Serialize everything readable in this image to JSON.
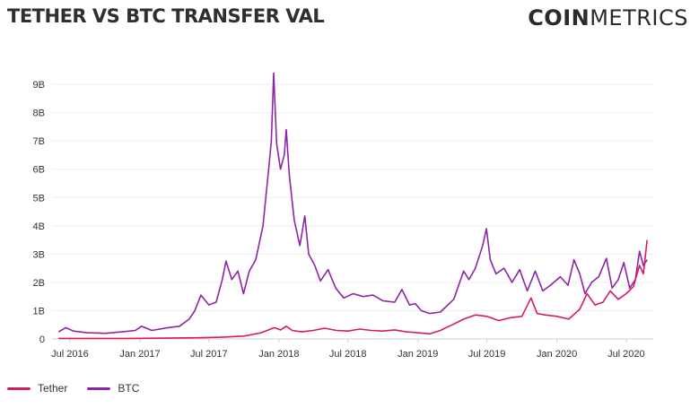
{
  "header": {
    "title": "TETHER VS BTC TRANSFER VAL",
    "brand_bold": "COIN",
    "brand_light": "METRICS"
  },
  "colors": {
    "tether": "#d81b60",
    "btc": "#8e24aa",
    "grid": "#eeeeee",
    "axis": "#cfcfcf",
    "text": "#333333"
  },
  "chart_data": {
    "type": "line",
    "title": "TETHER VS BTC TRANSFER VAL",
    "xlabel": "",
    "ylabel": "",
    "y_ticks": [
      "0",
      "1B",
      "2B",
      "3B",
      "4B",
      "5B",
      "6B",
      "7B",
      "8B",
      "9B"
    ],
    "ylim": [
      0,
      9.7
    ],
    "x_ticks": [
      "Jul 2016",
      "Jan 2017",
      "Jul 2017",
      "Jan 2018",
      "Jul 2018",
      "Jan 2019",
      "Jul 2019",
      "Jan 2020",
      "Jul 2020"
    ],
    "grid": "horizontal",
    "legend": "bottom-left",
    "units": "billions USD",
    "series": [
      {
        "name": "Tether",
        "points": [
          [
            "2016-06-01",
            0.02
          ],
          [
            "2016-09-01",
            0.02
          ],
          [
            "2016-12-01",
            0.02
          ],
          [
            "2017-03-01",
            0.03
          ],
          [
            "2017-06-01",
            0.04
          ],
          [
            "2017-08-01",
            0.06
          ],
          [
            "2017-10-01",
            0.1
          ],
          [
            "2017-11-15",
            0.22
          ],
          [
            "2017-12-20",
            0.4
          ],
          [
            "2018-01-05",
            0.32
          ],
          [
            "2018-01-20",
            0.45
          ],
          [
            "2018-02-05",
            0.3
          ],
          [
            "2018-03-01",
            0.25
          ],
          [
            "2018-04-01",
            0.3
          ],
          [
            "2018-05-01",
            0.38
          ],
          [
            "2018-06-01",
            0.3
          ],
          [
            "2018-07-01",
            0.28
          ],
          [
            "2018-08-01",
            0.35
          ],
          [
            "2018-09-01",
            0.3
          ],
          [
            "2018-10-01",
            0.28
          ],
          [
            "2018-11-01",
            0.32
          ],
          [
            "2018-12-01",
            0.25
          ],
          [
            "2019-01-01",
            0.22
          ],
          [
            "2019-02-01",
            0.18
          ],
          [
            "2019-03-01",
            0.3
          ],
          [
            "2019-04-01",
            0.5
          ],
          [
            "2019-05-01",
            0.7
          ],
          [
            "2019-06-01",
            0.85
          ],
          [
            "2019-07-01",
            0.8
          ],
          [
            "2019-08-01",
            0.65
          ],
          [
            "2019-09-01",
            0.75
          ],
          [
            "2019-10-01",
            0.8
          ],
          [
            "2019-10-25",
            1.45
          ],
          [
            "2019-11-10",
            0.9
          ],
          [
            "2019-12-01",
            0.85
          ],
          [
            "2020-01-01",
            0.8
          ],
          [
            "2020-02-01",
            0.7
          ],
          [
            "2020-03-01",
            1.05
          ],
          [
            "2020-03-20",
            1.6
          ],
          [
            "2020-04-10",
            1.2
          ],
          [
            "2020-05-01",
            1.3
          ],
          [
            "2020-05-20",
            1.7
          ],
          [
            "2020-06-10",
            1.4
          ],
          [
            "2020-07-01",
            1.6
          ],
          [
            "2020-07-20",
            1.85
          ],
          [
            "2020-08-05",
            2.6
          ],
          [
            "2020-08-15",
            2.3
          ],
          [
            "2020-08-25",
            3.5
          ]
        ]
      },
      {
        "name": "BTC",
        "points": [
          [
            "2016-06-01",
            0.25
          ],
          [
            "2016-06-20",
            0.4
          ],
          [
            "2016-07-10",
            0.28
          ],
          [
            "2016-08-15",
            0.22
          ],
          [
            "2016-10-01",
            0.2
          ],
          [
            "2016-11-15",
            0.25
          ],
          [
            "2016-12-20",
            0.3
          ],
          [
            "2017-01-05",
            0.45
          ],
          [
            "2017-02-01",
            0.3
          ],
          [
            "2017-03-15",
            0.4
          ],
          [
            "2017-04-15",
            0.45
          ],
          [
            "2017-05-10",
            0.7
          ],
          [
            "2017-05-25",
            1.0
          ],
          [
            "2017-06-10",
            1.55
          ],
          [
            "2017-07-01",
            1.2
          ],
          [
            "2017-07-20",
            1.3
          ],
          [
            "2017-08-05",
            2.1
          ],
          [
            "2017-08-15",
            2.75
          ],
          [
            "2017-08-30",
            2.1
          ],
          [
            "2017-09-15",
            2.4
          ],
          [
            "2017-09-30",
            1.6
          ],
          [
            "2017-10-15",
            2.4
          ],
          [
            "2017-11-01",
            2.8
          ],
          [
            "2017-11-20",
            4.0
          ],
          [
            "2017-12-05",
            6.0
          ],
          [
            "2017-12-12",
            7.0
          ],
          [
            "2017-12-18",
            9.4
          ],
          [
            "2017-12-26",
            6.9
          ],
          [
            "2018-01-05",
            6.0
          ],
          [
            "2018-01-15",
            6.5
          ],
          [
            "2018-01-20",
            7.4
          ],
          [
            "2018-01-28",
            5.8
          ],
          [
            "2018-02-10",
            4.2
          ],
          [
            "2018-02-25",
            3.3
          ],
          [
            "2018-03-10",
            4.35
          ],
          [
            "2018-03-20",
            3.0
          ],
          [
            "2018-04-05",
            2.6
          ],
          [
            "2018-04-20",
            2.05
          ],
          [
            "2018-05-10",
            2.45
          ],
          [
            "2018-05-30",
            1.8
          ],
          [
            "2018-06-20",
            1.45
          ],
          [
            "2018-07-15",
            1.6
          ],
          [
            "2018-08-10",
            1.5
          ],
          [
            "2018-09-05",
            1.55
          ],
          [
            "2018-10-01",
            1.35
          ],
          [
            "2018-11-01",
            1.3
          ],
          [
            "2018-11-20",
            1.75
          ],
          [
            "2018-12-10",
            1.2
          ],
          [
            "2018-12-25",
            1.25
          ],
          [
            "2019-01-10",
            1.0
          ],
          [
            "2019-02-01",
            0.9
          ],
          [
            "2019-03-01",
            0.95
          ],
          [
            "2019-04-05",
            1.4
          ],
          [
            "2019-05-01",
            2.4
          ],
          [
            "2019-05-15",
            2.1
          ],
          [
            "2019-06-01",
            2.5
          ],
          [
            "2019-06-20",
            3.3
          ],
          [
            "2019-06-30",
            3.9
          ],
          [
            "2019-07-10",
            2.8
          ],
          [
            "2019-07-25",
            2.3
          ],
          [
            "2019-08-15",
            2.5
          ],
          [
            "2019-09-05",
            2.0
          ],
          [
            "2019-09-25",
            2.45
          ],
          [
            "2019-10-15",
            1.7
          ],
          [
            "2019-11-05",
            2.4
          ],
          [
            "2019-11-25",
            1.7
          ],
          [
            "2019-12-15",
            1.9
          ],
          [
            "2020-01-10",
            2.2
          ],
          [
            "2020-01-30",
            1.9
          ],
          [
            "2020-02-15",
            2.8
          ],
          [
            "2020-03-01",
            2.3
          ],
          [
            "2020-03-15",
            1.6
          ],
          [
            "2020-04-01",
            2.0
          ],
          [
            "2020-04-20",
            2.2
          ],
          [
            "2020-05-10",
            2.85
          ],
          [
            "2020-05-25",
            1.8
          ],
          [
            "2020-06-10",
            2.1
          ],
          [
            "2020-06-25",
            2.7
          ],
          [
            "2020-07-10",
            1.8
          ],
          [
            "2020-07-25",
            2.1
          ],
          [
            "2020-08-05",
            3.1
          ],
          [
            "2020-08-15",
            2.6
          ],
          [
            "2020-08-25",
            2.8
          ]
        ]
      }
    ]
  }
}
